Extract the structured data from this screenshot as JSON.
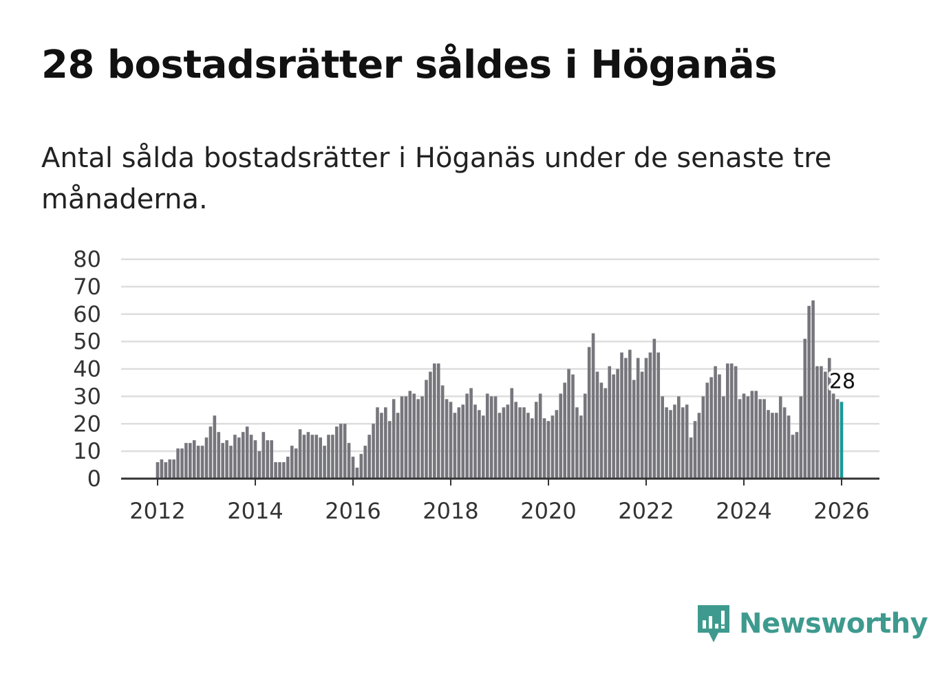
{
  "header": {
    "title": "28 bostadsrätter såldes i Höganäs",
    "subtitle": "Antal sålda bostadsrätter i Höganäs under de senaste tre månaderna."
  },
  "brand": {
    "name": "Newsworthy",
    "color": "#3e9a8e",
    "icon": "newsworthy-chart-icon"
  },
  "colors": {
    "bar": "#76767c",
    "highlight": "#1a9a96",
    "grid": "#dddddd",
    "baseline": "#333333"
  },
  "chart_data": {
    "type": "bar",
    "title": "28 bostadsrätter såldes i Höganäs",
    "xlabel": "",
    "ylabel": "",
    "ylim": [
      0,
      80
    ],
    "yticks": [
      "0",
      "10",
      "20",
      "30",
      "40",
      "50",
      "60",
      "70",
      "80"
    ],
    "xticks": [
      "2012",
      "2014",
      "2016",
      "2018",
      "2020",
      "2022",
      "2024",
      "2026"
    ],
    "start": "2012-01",
    "frequency": "monthly",
    "highlight_label": "28",
    "values": [
      6,
      7,
      6,
      7,
      7,
      11,
      11,
      13,
      13,
      14,
      12,
      12,
      15,
      19,
      23,
      17,
      13,
      14,
      12,
      16,
      15,
      17,
      19,
      16,
      14,
      10,
      17,
      14,
      14,
      6,
      6,
      6,
      8,
      12,
      11,
      18,
      16,
      17,
      16,
      16,
      15,
      12,
      16,
      16,
      19,
      20,
      20,
      13,
      8,
      4,
      9,
      12,
      16,
      20,
      26,
      24,
      26,
      21,
      29,
      24,
      30,
      30,
      32,
      31,
      29,
      30,
      36,
      39,
      42,
      42,
      34,
      29,
      28,
      24,
      26,
      27,
      31,
      33,
      27,
      25,
      23,
      31,
      30,
      30,
      24,
      26,
      27,
      33,
      28,
      26,
      26,
      24,
      22,
      28,
      31,
      22,
      21,
      23,
      25,
      31,
      35,
      40,
      38,
      26,
      23,
      31,
      48,
      53,
      39,
      35,
      33,
      41,
      38,
      40,
      46,
      44,
      47,
      36,
      44,
      39,
      44,
      46,
      51,
      46,
      30,
      26,
      25,
      27,
      30,
      26,
      27,
      15,
      21,
      24,
      30,
      35,
      37,
      41,
      38,
      30,
      42,
      42,
      41,
      29,
      31,
      30,
      32,
      32,
      29,
      29,
      25,
      24,
      24,
      30,
      26,
      23,
      16,
      17,
      30,
      51,
      63,
      65,
      41,
      41,
      39,
      44,
      31,
      29,
      28
    ]
  }
}
